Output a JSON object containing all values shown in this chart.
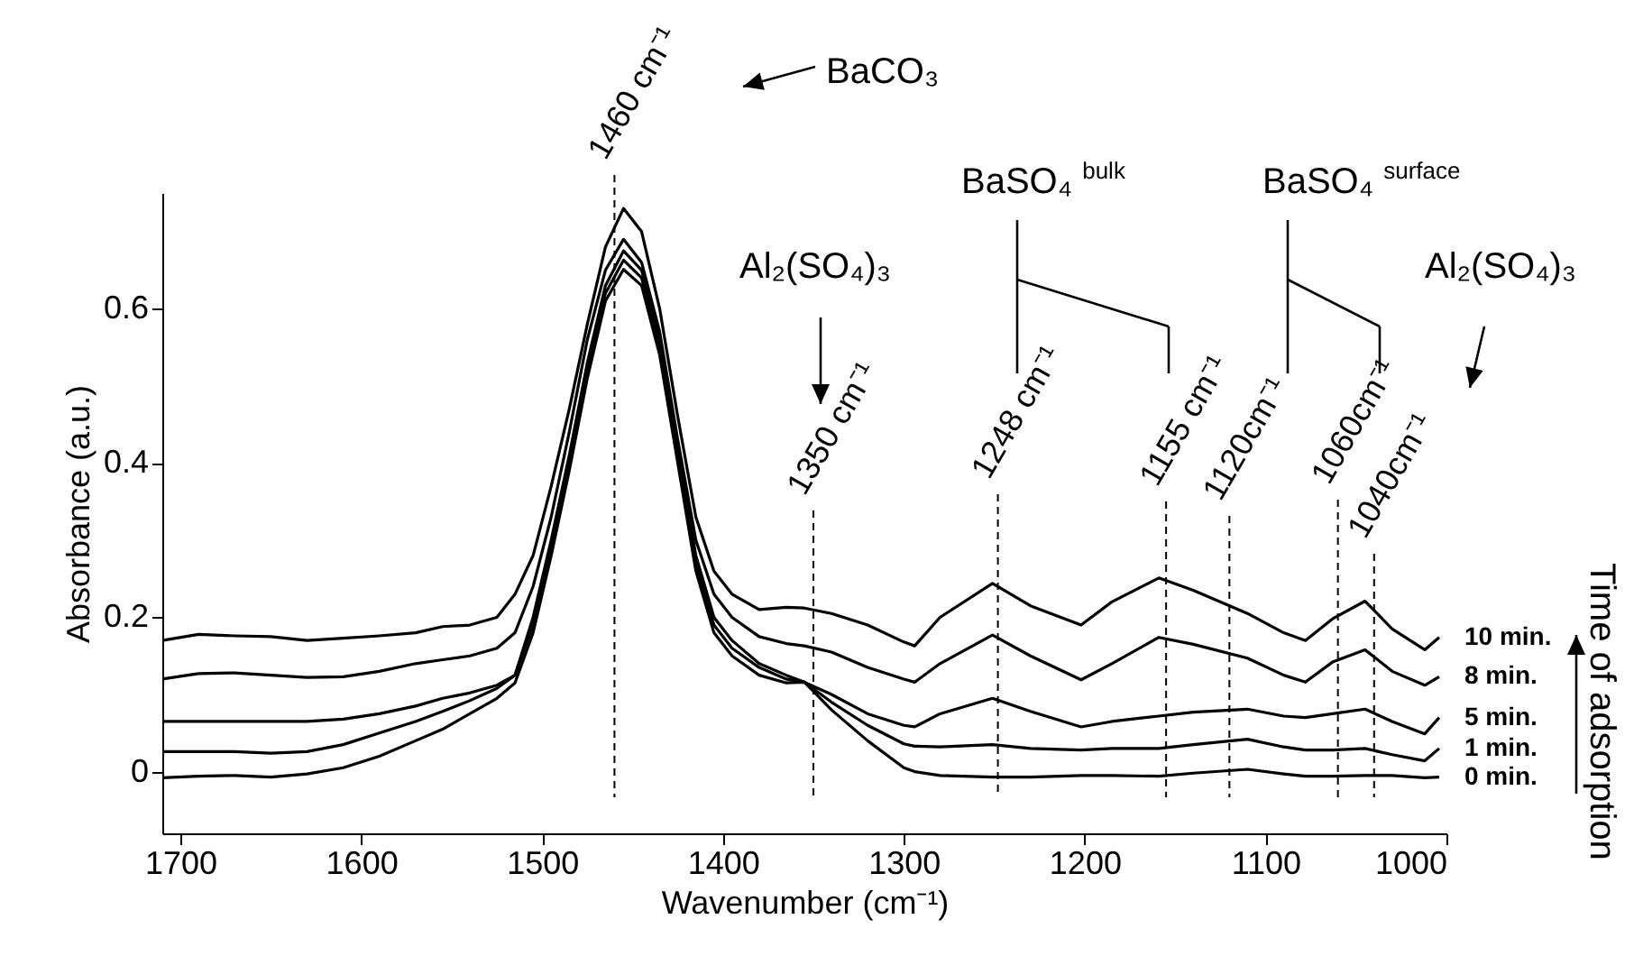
{
  "chart_data": {
    "type": "line",
    "xlabel": "Wavenumber (cm⁻¹)",
    "ylabel": "Absorbance (a.u.)",
    "xlim": [
      1710,
      1000
    ],
    "ylim": [
      -0.08,
      0.75
    ],
    "xticks": [
      1700,
      1600,
      1500,
      1400,
      1300,
      1200,
      1100,
      1000
    ],
    "yticks": [
      0,
      0.2,
      0.4,
      0.6
    ],
    "x": [
      1710,
      1690,
      1670,
      1650,
      1630,
      1610,
      1590,
      1570,
      1555,
      1540,
      1525,
      1515,
      1505,
      1495,
      1485,
      1475,
      1465,
      1455,
      1445,
      1435,
      1425,
      1415,
      1405,
      1395,
      1380,
      1365,
      1355,
      1340,
      1320,
      1300,
      1294,
      1280,
      1251,
      1230,
      1202,
      1185,
      1159,
      1140,
      1110,
      1090,
      1078,
      1063,
      1045,
      1030,
      1012,
      1004
    ],
    "series": [
      {
        "name": "10 min.",
        "color": "#000000",
        "values": [
          0.17,
          0.178,
          0.176,
          0.175,
          0.17,
          0.173,
          0.176,
          0.18,
          0.188,
          0.19,
          0.2,
          0.23,
          0.28,
          0.37,
          0.47,
          0.58,
          0.68,
          0.73,
          0.7,
          0.6,
          0.46,
          0.33,
          0.26,
          0.23,
          0.21,
          0.213,
          0.212,
          0.205,
          0.19,
          0.168,
          0.163,
          0.2,
          0.244,
          0.215,
          0.19,
          0.22,
          0.251,
          0.235,
          0.205,
          0.18,
          0.17,
          0.198,
          0.221,
          0.185,
          0.158,
          0.174
        ]
      },
      {
        "name": "8 min.",
        "color": "#000000",
        "values": [
          0.12,
          0.127,
          0.128,
          0.125,
          0.122,
          0.123,
          0.13,
          0.14,
          0.145,
          0.15,
          0.16,
          0.18,
          0.24,
          0.33,
          0.44,
          0.56,
          0.65,
          0.69,
          0.66,
          0.57,
          0.43,
          0.3,
          0.23,
          0.2,
          0.175,
          0.166,
          0.163,
          0.155,
          0.135,
          0.12,
          0.116,
          0.14,
          0.177,
          0.15,
          0.119,
          0.14,
          0.174,
          0.165,
          0.147,
          0.125,
          0.116,
          0.142,
          0.158,
          0.13,
          0.112,
          0.123
        ]
      },
      {
        "name": "5 min.",
        "color": "#000000",
        "values": [
          0.065,
          0.065,
          0.065,
          0.065,
          0.065,
          0.068,
          0.075,
          0.085,
          0.095,
          0.102,
          0.112,
          0.125,
          0.2,
          0.3,
          0.41,
          0.53,
          0.63,
          0.675,
          0.65,
          0.56,
          0.42,
          0.28,
          0.2,
          0.17,
          0.14,
          0.125,
          0.116,
          0.1,
          0.075,
          0.06,
          0.058,
          0.075,
          0.095,
          0.078,
          0.058,
          0.065,
          0.072,
          0.077,
          0.081,
          0.072,
          0.07,
          0.075,
          0.081,
          0.065,
          0.049,
          0.07
        ]
      },
      {
        "name": "1 min.",
        "color": "#000000",
        "values": [
          0.026,
          0.026,
          0.026,
          0.024,
          0.026,
          0.035,
          0.05,
          0.065,
          0.078,
          0.092,
          0.108,
          0.125,
          0.19,
          0.29,
          0.4,
          0.52,
          0.62,
          0.663,
          0.64,
          0.55,
          0.41,
          0.27,
          0.19,
          0.16,
          0.135,
          0.12,
          0.116,
          0.09,
          0.06,
          0.036,
          0.033,
          0.032,
          0.035,
          0.03,
          0.028,
          0.03,
          0.03,
          0.035,
          0.042,
          0.032,
          0.028,
          0.028,
          0.03,
          0.022,
          0.014,
          0.03
        ]
      },
      {
        "name": "0 min.",
        "color": "#000000",
        "values": [
          -0.008,
          -0.006,
          -0.005,
          -0.007,
          -0.003,
          0.005,
          0.02,
          0.04,
          0.055,
          0.075,
          0.095,
          0.115,
          0.18,
          0.28,
          0.39,
          0.51,
          0.61,
          0.651,
          0.63,
          0.54,
          0.4,
          0.26,
          0.18,
          0.15,
          0.125,
          0.115,
          0.116,
          0.08,
          0.04,
          0.005,
          0.0,
          -0.005,
          -0.007,
          -0.007,
          -0.005,
          -0.005,
          -0.006,
          -0.002,
          0.003,
          -0.003,
          -0.006,
          -0.006,
          -0.005,
          -0.005,
          -0.008,
          -0.007
        ]
      }
    ],
    "ref_lines": [
      {
        "axis": "x",
        "value": 1460,
        "label": "1460 cm⁻¹",
        "line_style": "dashed"
      },
      {
        "axis": "x",
        "value": 1350,
        "label": "1350 cm⁻¹",
        "line_style": "dashed"
      },
      {
        "axis": "x",
        "value": 1248,
        "label": "1248 cm⁻¹",
        "line_style": "dashed"
      },
      {
        "axis": "x",
        "value": 1155,
        "label": "1155 cm⁻¹",
        "line_style": "dashed"
      },
      {
        "axis": "x",
        "value": 1120,
        "label": "1120cm⁻¹",
        "line_style": "dashed"
      },
      {
        "axis": "x",
        "value": 1060,
        "label": "1060cm⁻¹",
        "line_style": "dashed"
      },
      {
        "axis": "x",
        "value": 1040,
        "label": "1040cm⁻¹",
        "line_style": "dashed"
      }
    ],
    "annotations": [
      "BaCO₃",
      "BaSO₄ $^{bulk}$",
      "BaSO₄ $^{surface}$",
      "Al₂(SO₄)₃",
      "Al₂(SO₄)₃",
      "Time of adsorption"
    ]
  }
}
